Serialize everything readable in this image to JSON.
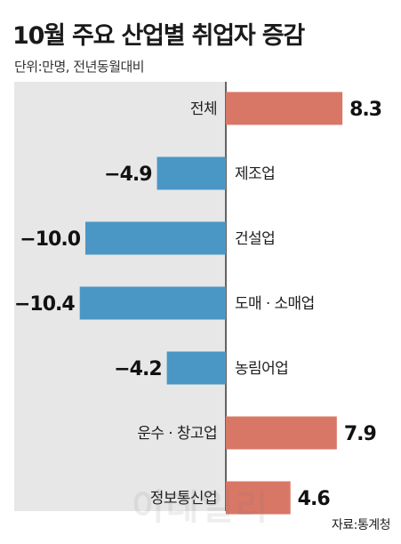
{
  "header": {
    "title": "10월 주요 산업별 취업자 증감",
    "subtitle": "단위:만명, 전년동월대비"
  },
  "footer": {
    "source": "자료:통계청",
    "watermark": "이데일리"
  },
  "colors": {
    "positive": "#d97766",
    "negative": "#4a97c6",
    "panel": "#e7e7e7"
  },
  "chart_data": {
    "type": "bar",
    "orientation": "horizontal",
    "title": "10월 주요 산업별 취업자 증감",
    "unit": "단위:만명, 전년동월대비",
    "categories": [
      "전체",
      "제조업",
      "건설업",
      "도매 · 소매업",
      "농림어업",
      "운수 · 창고업",
      "정보통신업"
    ],
    "values": [
      8.3,
      -4.9,
      -10.0,
      -10.4,
      -4.2,
      7.9,
      4.6
    ],
    "value_labels": [
      "8.3",
      "−4.9",
      "−10.0",
      "−10.4",
      "−4.2",
      "7.9",
      "4.6"
    ],
    "xlim": [
      -10.4,
      8.3
    ],
    "grid": false,
    "legend": "none"
  }
}
